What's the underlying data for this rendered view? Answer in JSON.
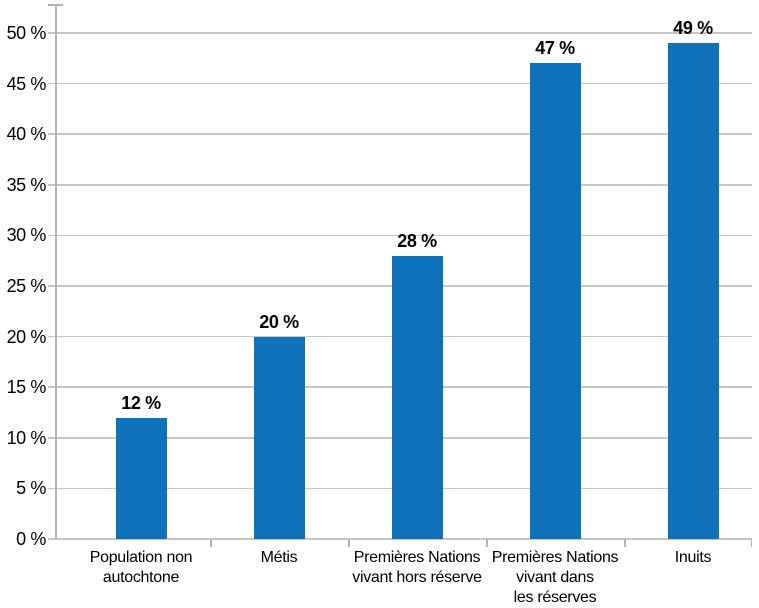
{
  "chart_data": {
    "type": "bar",
    "title": "",
    "categories": [
      "Population non\nautochtone",
      "Métis",
      "Premières Nations\nvivant hors réserve",
      "Premières Nations\nvivant dans\nles réserves",
      "Inuits"
    ],
    "values": [
      12,
      20,
      28,
      47,
      49
    ],
    "value_labels": [
      "12 %",
      "20 %",
      "28 %",
      "47 %",
      "49 %"
    ],
    "y_axis": {
      "min": 0,
      "max": 50,
      "tick_values": [
        0,
        5,
        10,
        15,
        20,
        25,
        30,
        35,
        40,
        45,
        50
      ],
      "ticks": [
        "0 %",
        "5 %",
        "10 %",
        "15 %",
        "20 %",
        "25 %",
        "30 %",
        "35 %",
        "40 %",
        "45 %",
        "50 %"
      ]
    },
    "xlabel": "",
    "ylabel": "",
    "legend_position": "none",
    "grid": true,
    "colors": {
      "bar": "#0d72b9",
      "gridline": "#c6c6c6",
      "axis": "#b3b3b3",
      "text": "#000000",
      "background": "#ffffff"
    }
  }
}
